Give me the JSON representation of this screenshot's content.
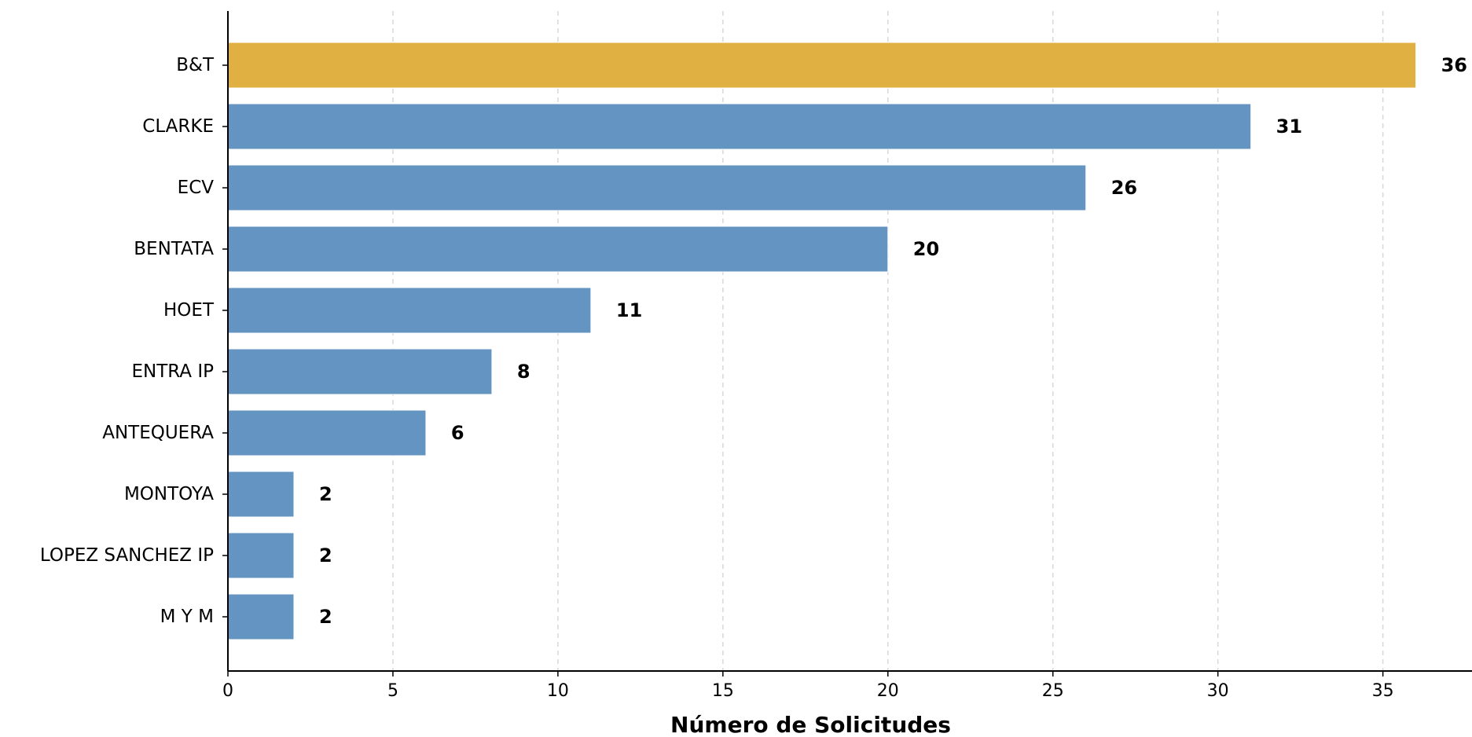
{
  "chart_data": {
    "type": "bar",
    "orientation": "horizontal",
    "categories": [
      "B&T",
      "CLARKE",
      "ECV",
      "BENTATA",
      "HOET",
      "ENTRA IP",
      "ANTEQUERA",
      "MONTOYA",
      "LOPEZ SANCHEZ IP",
      "M Y M"
    ],
    "values": [
      36,
      31,
      26,
      20,
      11,
      8,
      6,
      2,
      2,
      2
    ],
    "value_labels": [
      "36",
      "31",
      "26",
      "20",
      "11",
      "8",
      "6",
      "2",
      "2",
      "2"
    ],
    "highlighted_category": "B&T",
    "xlabel": "Número de Solicitudes",
    "ylabel": "",
    "xlim": [
      0,
      37.7
    ],
    "xticks": [
      0,
      5,
      10,
      15,
      20,
      25,
      30,
      35
    ],
    "xtick_labels": [
      "0",
      "5",
      "10",
      "15",
      "20",
      "25",
      "30",
      "35"
    ],
    "grid": "vertical-dashed",
    "legend": "none",
    "colors": {
      "bar": "#6495c2",
      "highlight": "#e0b142",
      "grid": "#d9d9d9",
      "axis": "#000000"
    }
  }
}
